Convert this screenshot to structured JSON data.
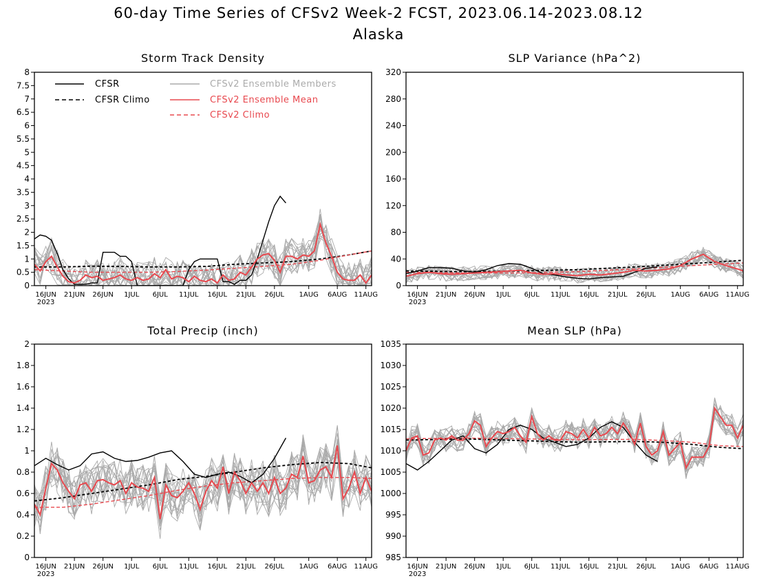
{
  "figure": {
    "title": "60-day Time Series of CFSv2 Week-2 FCST, 2023.06.14-2023.08.12",
    "subtitle": "Alaska",
    "x_tick_labels": [
      "16JUN",
      "21JUN",
      "26JUN",
      "1JUL",
      "6JUL",
      "11JUL",
      "16JUL",
      "21JUL",
      "26JUL",
      "1AUG",
      "6AUG",
      "11AUG"
    ],
    "x_year_label": "2023",
    "legend": [
      {
        "label": "CFSR",
        "color": "#000000",
        "style": "solid"
      },
      {
        "label": "CFSR Climo",
        "color": "#000000",
        "style": "dashed"
      },
      {
        "label": "CFSv2 Ensemble Members",
        "color": "#aaaaaa",
        "style": "solid"
      },
      {
        "label": "CFSv2 Ensemble Mean",
        "color": "#e8484e",
        "style": "solid"
      },
      {
        "label": "CFSv2 Climo",
        "color": "#e8484e",
        "style": "dashed"
      }
    ],
    "colors": {
      "cfsr": "#000000",
      "members": "#aaaaaa",
      "ens_mean": "#e8484e",
      "cfsv2_climo": "#e8484e"
    }
  },
  "chart_data": [
    {
      "type": "line",
      "title": "Storm Track Density",
      "x_range_days": [
        0,
        59
      ],
      "ylim": [
        0,
        8
      ],
      "yticks": [
        "0",
        "0.5",
        "1",
        "1.5",
        "2",
        "2.5",
        "3",
        "3.5",
        "4",
        "4.5",
        "5",
        "5.5",
        "6",
        "6.5",
        "7",
        "7.5",
        "8"
      ],
      "series": [
        {
          "name": "CFSR Climo",
          "x": [
            0,
            5,
            10,
            15,
            20,
            25,
            30,
            35,
            40,
            45,
            50,
            55,
            59
          ],
          "y": [
            0.7,
            0.7,
            0.73,
            0.72,
            0.7,
            0.7,
            0.72,
            0.8,
            0.85,
            0.9,
            1.0,
            1.15,
            1.3
          ]
        },
        {
          "name": "CFSv2 Climo",
          "x": [
            0,
            5,
            10,
            15,
            20,
            25,
            30,
            35,
            40,
            45,
            50,
            55,
            59
          ],
          "y": [
            0.6,
            0.55,
            0.5,
            0.5,
            0.5,
            0.53,
            0.58,
            0.65,
            0.72,
            0.8,
            0.95,
            1.15,
            1.3
          ]
        },
        {
          "name": "CFSR",
          "x": [
            0,
            1,
            2,
            3,
            4,
            5,
            6,
            7,
            8,
            9,
            10,
            11,
            12,
            13,
            14,
            15,
            16,
            17,
            18,
            19,
            20,
            21,
            22,
            23,
            24,
            25,
            26,
            27,
            28,
            29,
            30,
            31,
            32,
            33,
            34,
            35,
            36,
            37,
            38,
            39,
            40,
            41,
            42,
            43,
            44
          ],
          "y": [
            1.75,
            1.9,
            1.85,
            1.7,
            1.2,
            0.6,
            0.25,
            0.05,
            0.05,
            0.05,
            0.1,
            0.1,
            1.25,
            1.25,
            1.25,
            1.1,
            1.1,
            0.9,
            0.0,
            0.0,
            0.0,
            0.0,
            0.0,
            0.0,
            0.0,
            0.0,
            0.0,
            0.6,
            0.9,
            1.0,
            1.0,
            1.0,
            1.0,
            0.15,
            0.15,
            0.05,
            0.2,
            0.2,
            0.4,
            1.0,
            1.7,
            2.4,
            3.0,
            3.35,
            3.1
          ]
        },
        {
          "name": "CFSv2 Ensemble Mean",
          "x": [
            0,
            1,
            2,
            3,
            4,
            5,
            6,
            7,
            8,
            9,
            10,
            11,
            12,
            13,
            14,
            15,
            16,
            17,
            18,
            19,
            20,
            21,
            22,
            23,
            24,
            25,
            26,
            27,
            28,
            29,
            30,
            31,
            32,
            33,
            34,
            35,
            36,
            37,
            38,
            39,
            40,
            41,
            42,
            43,
            44,
            45,
            46,
            47,
            48,
            49,
            50,
            51,
            52,
            53,
            54,
            55,
            56,
            57,
            58,
            59
          ],
          "y": [
            0.8,
            0.55,
            0.9,
            1.1,
            0.7,
            0.35,
            0.15,
            0.1,
            0.2,
            0.4,
            0.3,
            0.35,
            0.2,
            0.25,
            0.3,
            0.4,
            0.25,
            0.2,
            0.3,
            0.2,
            0.25,
            0.45,
            0.3,
            0.6,
            0.25,
            0.35,
            0.3,
            0.15,
            0.35,
            0.2,
            0.15,
            0.25,
            0.1,
            0.4,
            0.2,
            0.25,
            0.5,
            0.4,
            0.7,
            1.0,
            1.15,
            1.2,
            0.95,
            0.5,
            1.1,
            1.1,
            1.0,
            1.15,
            1.1,
            1.3,
            2.3,
            1.6,
            1.1,
            0.5,
            0.25,
            0.2,
            0.2,
            0.4,
            0.1,
            0.4
          ]
        }
      ]
    },
    {
      "type": "line",
      "title": "SLP Variance (hPa^2)",
      "x_range_days": [
        0,
        59
      ],
      "ylim": [
        0,
        320
      ],
      "yticks": [
        "0",
        "40",
        "80",
        "120",
        "160",
        "200",
        "240",
        "280",
        "320"
      ],
      "series": [
        {
          "name": "CFSR Climo",
          "x": [
            0,
            10,
            20,
            30,
            40,
            50,
            59
          ],
          "y": [
            22,
            21,
            22,
            24,
            28,
            33,
            38
          ]
        },
        {
          "name": "CFSv2 Climo",
          "x": [
            0,
            10,
            20,
            30,
            40,
            50,
            59
          ],
          "y": [
            20,
            19,
            19,
            21,
            25,
            30,
            34
          ]
        },
        {
          "name": "CFSR",
          "x": [
            0,
            2,
            4,
            6,
            8,
            10,
            12,
            14,
            16,
            18,
            20,
            22,
            24,
            26,
            28,
            30,
            32,
            34,
            36,
            38,
            40,
            42,
            44
          ],
          "y": [
            18,
            22,
            27,
            27,
            26,
            22,
            20,
            24,
            30,
            33,
            32,
            26,
            18,
            16,
            13,
            11,
            10,
            12,
            13,
            14,
            20,
            26,
            28
          ]
        },
        {
          "name": "CFSv2 Ensemble Mean",
          "x": [
            0,
            2,
            4,
            6,
            8,
            10,
            12,
            14,
            16,
            18,
            20,
            22,
            24,
            26,
            28,
            30,
            32,
            34,
            36,
            38,
            40,
            42,
            44,
            46,
            48,
            50,
            52,
            54,
            56,
            58,
            59
          ],
          "y": [
            14,
            18,
            20,
            18,
            17,
            18,
            19,
            20,
            21,
            22,
            23,
            19,
            17,
            18,
            16,
            15,
            17,
            16,
            18,
            20,
            23,
            22,
            23,
            25,
            30,
            40,
            47,
            36,
            30,
            25,
            22
          ]
        }
      ]
    },
    {
      "type": "line",
      "title": "Total Precip (inch)",
      "x_range_days": [
        0,
        59
      ],
      "ylim": [
        0,
        2
      ],
      "yticks": [
        "0",
        "0.2",
        "0.4",
        "0.6",
        "0.8",
        "1",
        "1.2",
        "1.4",
        "1.6",
        "1.8",
        "2"
      ],
      "series": [
        {
          "name": "CFSR Climo",
          "x": [
            0,
            5,
            10,
            15,
            20,
            25,
            30,
            35,
            40,
            45,
            50,
            55,
            59
          ],
          "y": [
            0.53,
            0.56,
            0.6,
            0.64,
            0.68,
            0.73,
            0.76,
            0.8,
            0.84,
            0.87,
            0.89,
            0.88,
            0.84
          ]
        },
        {
          "name": "CFSv2 Climo",
          "x": [
            0,
            5,
            10,
            15,
            20,
            25,
            30,
            35,
            40,
            45,
            50,
            55,
            59
          ],
          "y": [
            0.47,
            0.47,
            0.5,
            0.54,
            0.58,
            0.63,
            0.67,
            0.7,
            0.72,
            0.74,
            0.75,
            0.75,
            0.74
          ]
        },
        {
          "name": "CFSR",
          "x": [
            0,
            2,
            4,
            6,
            8,
            10,
            12,
            14,
            16,
            18,
            20,
            22,
            24,
            26,
            28,
            30,
            32,
            34,
            36,
            38,
            40,
            42,
            44
          ],
          "y": [
            0.86,
            0.93,
            0.87,
            0.82,
            0.86,
            0.97,
            0.99,
            0.93,
            0.9,
            0.91,
            0.94,
            0.98,
            1.0,
            0.9,
            0.78,
            0.75,
            0.78,
            0.8,
            0.76,
            0.7,
            0.78,
            0.93,
            1.12
          ]
        },
        {
          "name": "CFSv2 Ensemble Mean",
          "x": [
            0,
            1,
            2,
            3,
            4,
            5,
            6,
            7,
            8,
            9,
            10,
            11,
            12,
            13,
            14,
            15,
            16,
            17,
            18,
            19,
            20,
            21,
            22,
            23,
            24,
            25,
            26,
            27,
            28,
            29,
            30,
            31,
            32,
            33,
            34,
            35,
            36,
            37,
            38,
            39,
            40,
            41,
            42,
            43,
            44,
            45,
            46,
            47,
            48,
            49,
            50,
            51,
            52,
            53,
            54,
            55,
            56,
            57,
            58,
            59
          ],
          "y": [
            0.5,
            0.4,
            0.65,
            0.88,
            0.82,
            0.7,
            0.62,
            0.55,
            0.68,
            0.7,
            0.62,
            0.72,
            0.73,
            0.7,
            0.68,
            0.72,
            0.6,
            0.7,
            0.66,
            0.65,
            0.62,
            0.75,
            0.36,
            0.68,
            0.58,
            0.56,
            0.62,
            0.7,
            0.6,
            0.45,
            0.62,
            0.72,
            0.65,
            0.85,
            0.6,
            0.8,
            0.72,
            0.6,
            0.7,
            0.62,
            0.7,
            0.6,
            0.75,
            0.6,
            0.65,
            0.78,
            0.75,
            0.95,
            0.7,
            0.72,
            0.82,
            0.85,
            0.75,
            1.05,
            0.55,
            0.65,
            0.8,
            0.6,
            0.75,
            0.62
          ]
        }
      ]
    },
    {
      "type": "line",
      "title": "Mean SLP (hPa)",
      "x_range_days": [
        0,
        59
      ],
      "ylim": [
        985,
        1035
      ],
      "yticks": [
        "985",
        "990",
        "995",
        "1000",
        "1005",
        "1010",
        "1015",
        "1020",
        "1025",
        "1030",
        "1035"
      ],
      "series": [
        {
          "name": "CFSR Climo",
          "x": [
            0,
            10,
            20,
            30,
            40,
            45,
            50,
            55,
            59
          ],
          "y": [
            1012.5,
            1012.8,
            1012.4,
            1012.0,
            1012.2,
            1012.0,
            1011.5,
            1010.8,
            1010.5
          ]
        },
        {
          "name": "CFSv2 Climo",
          "x": [
            0,
            10,
            20,
            30,
            40,
            45,
            50,
            55,
            59
          ],
          "y": [
            1012.8,
            1013.0,
            1012.8,
            1012.6,
            1012.7,
            1012.4,
            1012.0,
            1011.2,
            1011.0
          ]
        },
        {
          "name": "CFSR",
          "x": [
            0,
            2,
            4,
            6,
            8,
            10,
            12,
            14,
            16,
            18,
            20,
            22,
            24,
            26,
            28,
            30,
            32,
            34,
            36,
            38,
            40,
            42,
            44
          ],
          "y": [
            1007,
            1005.5,
            1007.5,
            1010,
            1012.5,
            1013.5,
            1010.5,
            1009.5,
            1011.5,
            1015,
            1016,
            1015,
            1013,
            1012,
            1011,
            1011.5,
            1013,
            1015.5,
            1016.8,
            1015.5,
            1012,
            1009,
            1007.5
          ]
        },
        {
          "name": "CFSv2 Ensemble Mean",
          "x": [
            0,
            1,
            2,
            3,
            4,
            5,
            6,
            7,
            8,
            9,
            10,
            11,
            12,
            13,
            14,
            15,
            16,
            17,
            18,
            19,
            20,
            21,
            22,
            23,
            24,
            25,
            26,
            27,
            28,
            29,
            30,
            31,
            32,
            33,
            34,
            35,
            36,
            37,
            38,
            39,
            40,
            41,
            42,
            43,
            44,
            45,
            46,
            47,
            48,
            49,
            50,
            51,
            52,
            53,
            54,
            55,
            56,
            57,
            58,
            59
          ],
          "y": [
            1010,
            1013,
            1013.5,
            1009,
            1009.5,
            1012.5,
            1013,
            1012.5,
            1013.5,
            1012.5,
            1012.5,
            1014,
            1017,
            1016,
            1011,
            1013,
            1014.5,
            1014,
            1014.5,
            1015.5,
            1013.5,
            1012,
            1018,
            1014,
            1012.5,
            1013.5,
            1012.5,
            1012.5,
            1014.5,
            1014,
            1013,
            1015,
            1013,
            1015.5,
            1013.5,
            1014,
            1015.5,
            1014,
            1016.5,
            1014.5,
            1011.5,
            1016.5,
            1011,
            1009,
            1010,
            1014.5,
            1009,
            1010.5,
            1012,
            1006,
            1008.5,
            1008.5,
            1008.5,
            1011,
            1020,
            1018,
            1016,
            1016,
            1013,
            1016
          ]
        }
      ]
    }
  ]
}
